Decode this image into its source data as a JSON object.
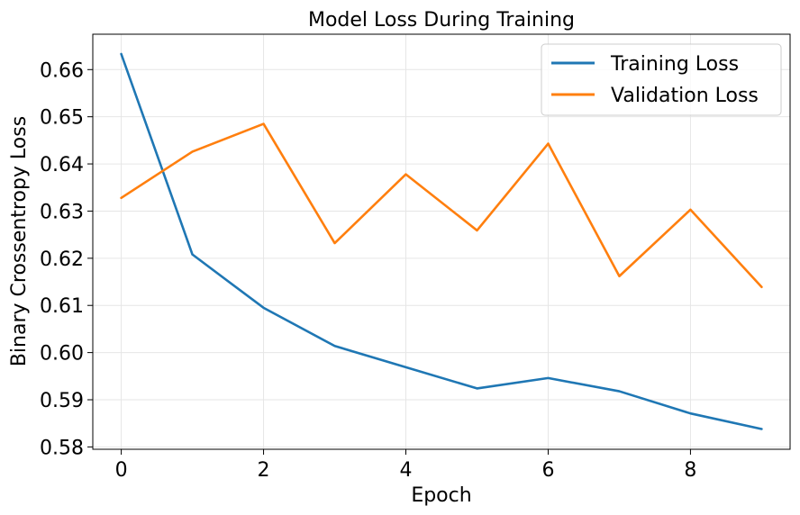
{
  "chart_data": {
    "type": "line",
    "title": "Model Loss During Training",
    "xlabel": "Epoch",
    "ylabel": "Binary Crossentropy Loss",
    "x": [
      0,
      1,
      2,
      3,
      4,
      5,
      6,
      7,
      8,
      9
    ],
    "series": [
      {
        "name": "Training Loss",
        "color": "#1f77b4",
        "values": [
          0.6633,
          0.6208,
          0.6095,
          0.6014,
          0.5969,
          0.5924,
          0.5946,
          0.5918,
          0.5871,
          0.5838
        ]
      },
      {
        "name": "Validation Loss",
        "color": "#ff7f0e",
        "values": [
          0.6328,
          0.6426,
          0.6485,
          0.6232,
          0.6378,
          0.6259,
          0.6443,
          0.6162,
          0.6303,
          0.6139
        ]
      }
    ],
    "xlim": [
      -0.4,
      9.4
    ],
    "ylim": [
      0.5795,
      0.6675
    ],
    "xticks": [
      0,
      2,
      4,
      6,
      8
    ],
    "xtick_labels": [
      "0",
      "2",
      "4",
      "6",
      "8"
    ],
    "yticks": [
      0.58,
      0.59,
      0.6,
      0.61,
      0.62,
      0.63,
      0.64,
      0.65,
      0.66
    ],
    "ytick_labels": [
      "0.58",
      "0.59",
      "0.60",
      "0.61",
      "0.62",
      "0.63",
      "0.64",
      "0.65",
      "0.66"
    ],
    "grid": true,
    "legend_position": "top-right"
  }
}
